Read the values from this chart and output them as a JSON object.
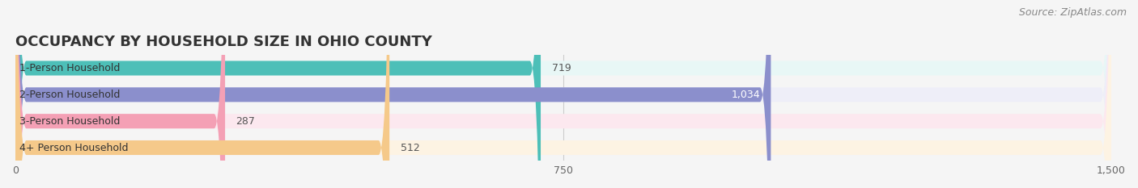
{
  "title": "OCCUPANCY BY HOUSEHOLD SIZE IN OHIO COUNTY",
  "source": "Source: ZipAtlas.com",
  "categories": [
    "1-Person Household",
    "2-Person Household",
    "3-Person Household",
    "4+ Person Household"
  ],
  "values": [
    719,
    1034,
    287,
    512
  ],
  "bar_colors": [
    "#4dbfb8",
    "#8b8fcc",
    "#f4a0b5",
    "#f5c98a"
  ],
  "bar_bg_colors": [
    "#e8f7f6",
    "#eeeef8",
    "#fce8ef",
    "#fdf3e3"
  ],
  "value_inside": [
    false,
    true,
    false,
    false
  ],
  "xlim": [
    0,
    1500
  ],
  "xtick_labels": [
    "0",
    "750",
    "1,500"
  ],
  "title_fontsize": 13,
  "label_fontsize": 9,
  "value_fontsize": 9,
  "source_fontsize": 9,
  "bar_height": 0.55,
  "background_color": "#f5f5f5"
}
